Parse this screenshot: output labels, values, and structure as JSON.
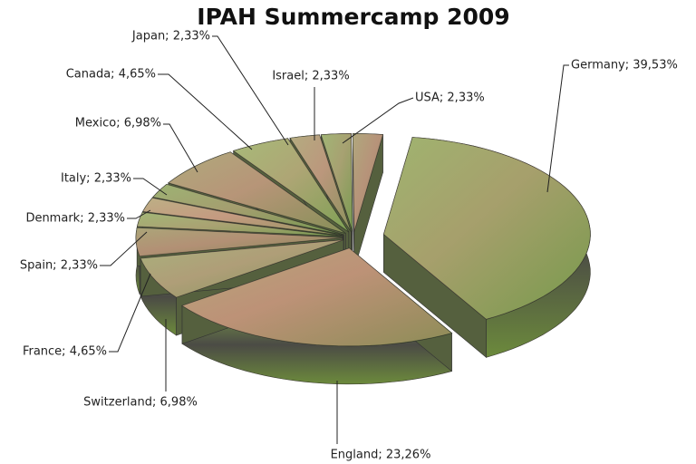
{
  "chart_data": {
    "type": "pie",
    "title": "IPAH Summercamp 2009",
    "values": [
      39.53,
      23.26,
      6.98,
      4.65,
      2.33,
      2.33,
      2.33,
      6.98,
      4.65,
      2.33,
      2.33,
      2.33
    ],
    "value_labels": [
      "Germany; 39,53%",
      "England; 23,26%",
      "Switzerland; 6,98%",
      "France; 4,65%",
      "Spain; 2,33%",
      "Denmark; 2,33%",
      "Italy; 2,33%",
      "Mexico; 6,98%",
      "Canada; 4,65%",
      "Japan; 2,33%",
      "Israel; 2,33%",
      "USA; 2,33%"
    ]
  }
}
